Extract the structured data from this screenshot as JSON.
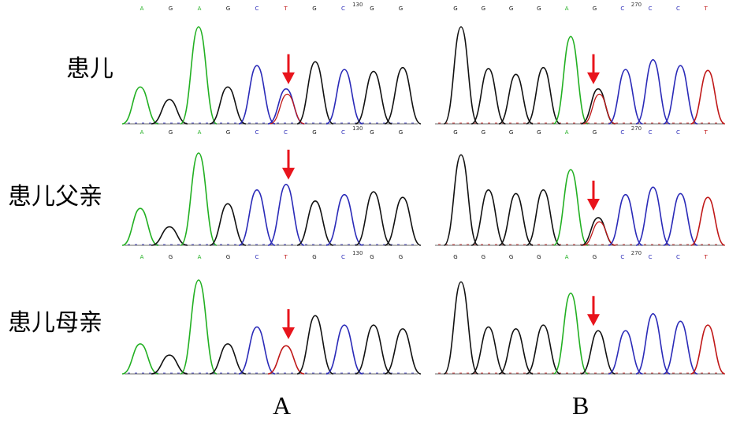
{
  "rows": [
    {
      "label": "患儿",
      "A_top_bases": [
        "A",
        "G",
        "A",
        "G",
        "C",
        "T",
        "G",
        "C",
        "G",
        "G"
      ],
      "A_top_pos": "130",
      "B_top_bases": [
        "G",
        "G",
        "G",
        "G",
        "A",
        "G",
        "C",
        "C",
        "C",
        "T"
      ],
      "B_top_pos": "270",
      "A_bottom_bases": [
        "A",
        "G",
        "A",
        "G",
        "C",
        "C",
        "G",
        "C",
        "G",
        "G"
      ],
      "A_bottom_pos": "130",
      "B_bottom_bases": [
        "G",
        "G",
        "G",
        "G",
        "A",
        "G",
        "C",
        "C",
        "C",
        "T"
      ],
      "B_bottom_pos": "270"
    },
    {
      "label": "患儿父亲",
      "A_bottom_bases": [
        "A",
        "G",
        "A",
        "G",
        "C",
        "T",
        "G",
        "C",
        "G",
        "G"
      ],
      "A_bottom_pos": "130",
      "B_bottom_bases": [
        "G",
        "G",
        "G",
        "G",
        "A",
        "G",
        "C",
        "C",
        "C",
        "T"
      ],
      "B_bottom_pos": "270"
    },
    {
      "label": "患儿母亲"
    }
  ],
  "panels": [
    "A",
    "B"
  ],
  "colors": {
    "A": "#22b022",
    "C": "#2a2ab8",
    "G": "#111111",
    "T": "#c01818",
    "arrow": "#e8141c"
  },
  "traces": {
    "A": [
      {
        "peaks": [
          "A",
          "G",
          "A",
          "G",
          "C",
          "CT",
          "G",
          "C",
          "G",
          "G"
        ],
        "heights": [
          0.38,
          0.25,
          1.0,
          0.38,
          0.6,
          0.36,
          0.64,
          0.56,
          0.54,
          0.58
        ]
      },
      {
        "peaks": [
          "A",
          "G",
          "A",
          "G",
          "C",
          "C",
          "G",
          "C",
          "G",
          "G"
        ],
        "heights": [
          0.4,
          0.2,
          1.0,
          0.45,
          0.6,
          0.66,
          0.48,
          0.55,
          0.58,
          0.52
        ]
      },
      {
        "peaks": [
          "A",
          "G",
          "A",
          "G",
          "C",
          "T",
          "G",
          "C",
          "G",
          "G"
        ],
        "heights": [
          0.32,
          0.2,
          1.0,
          0.32,
          0.5,
          0.3,
          0.62,
          0.52,
          0.52,
          0.48
        ]
      }
    ],
    "B": [
      {
        "peaks": [
          "G",
          "G",
          "G",
          "G",
          "A",
          "GT",
          "C",
          "C",
          "C",
          "T"
        ],
        "heights": [
          1.0,
          0.57,
          0.51,
          0.58,
          0.9,
          0.36,
          0.56,
          0.66,
          0.6,
          0.55
        ]
      },
      {
        "peaks": [
          "G",
          "G",
          "G",
          "G",
          "A",
          "GT",
          "C",
          "C",
          "C",
          "T"
        ],
        "heights": [
          0.98,
          0.6,
          0.56,
          0.6,
          0.82,
          0.3,
          0.55,
          0.63,
          0.56,
          0.52
        ]
      },
      {
        "peaks": [
          "G",
          "G",
          "G",
          "G",
          "A",
          "G",
          "C",
          "C",
          "C",
          "T"
        ],
        "heights": [
          0.98,
          0.5,
          0.48,
          0.52,
          0.86,
          0.46,
          0.46,
          0.64,
          0.56,
          0.52
        ]
      }
    ]
  },
  "arrow_index": 5
}
